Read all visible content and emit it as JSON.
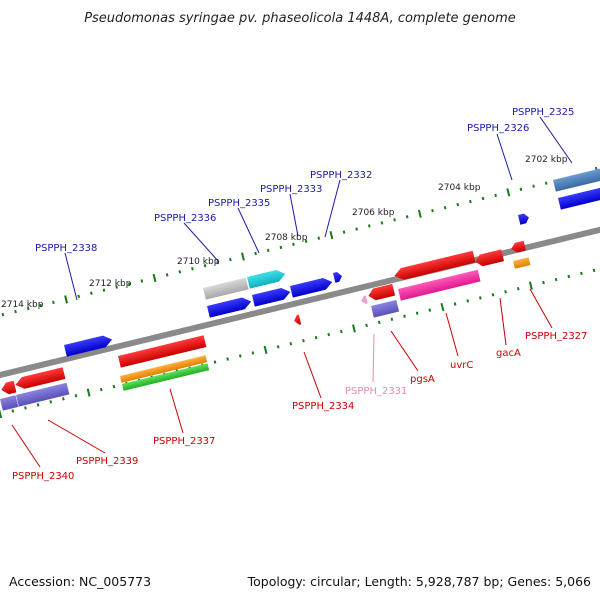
{
  "title": "Pseudomonas syringae pv. phaseolicola 1448A, complete genome",
  "footer": {
    "accession": "Accession: NC_005773",
    "summary": "Topology: circular; Length: 5,928,787 bp; Genes: 5,066"
  },
  "colors": {
    "forward_label": "#1a1aa8",
    "reverse_label": "#cc0000",
    "pseudo_label": "#e88ab6",
    "backbone": "#8a8a8a",
    "tick": "#1a7a1a"
  },
  "scale_labels": [
    "2702 kbp",
    "2704 kbp",
    "2706 kbp",
    "2708 kbp",
    "2710 kbp",
    "2712 kbp",
    "2714 kbp"
  ],
  "gene_labels": {
    "top": [
      "PSPPH_2325",
      "PSPPH_2326",
      "PSPPH_2332",
      "PSPPH_2333",
      "PSPPH_2335",
      "PSPPH_2336",
      "PSPPH_2338"
    ],
    "bottom": [
      "PSPPH_2327",
      "gacA",
      "uvrC",
      "pgsA",
      "PSPPH_2331",
      "PSPPH_2334",
      "PSPPH_2337",
      "PSPPH_2339",
      "PSPPH_2340"
    ]
  }
}
